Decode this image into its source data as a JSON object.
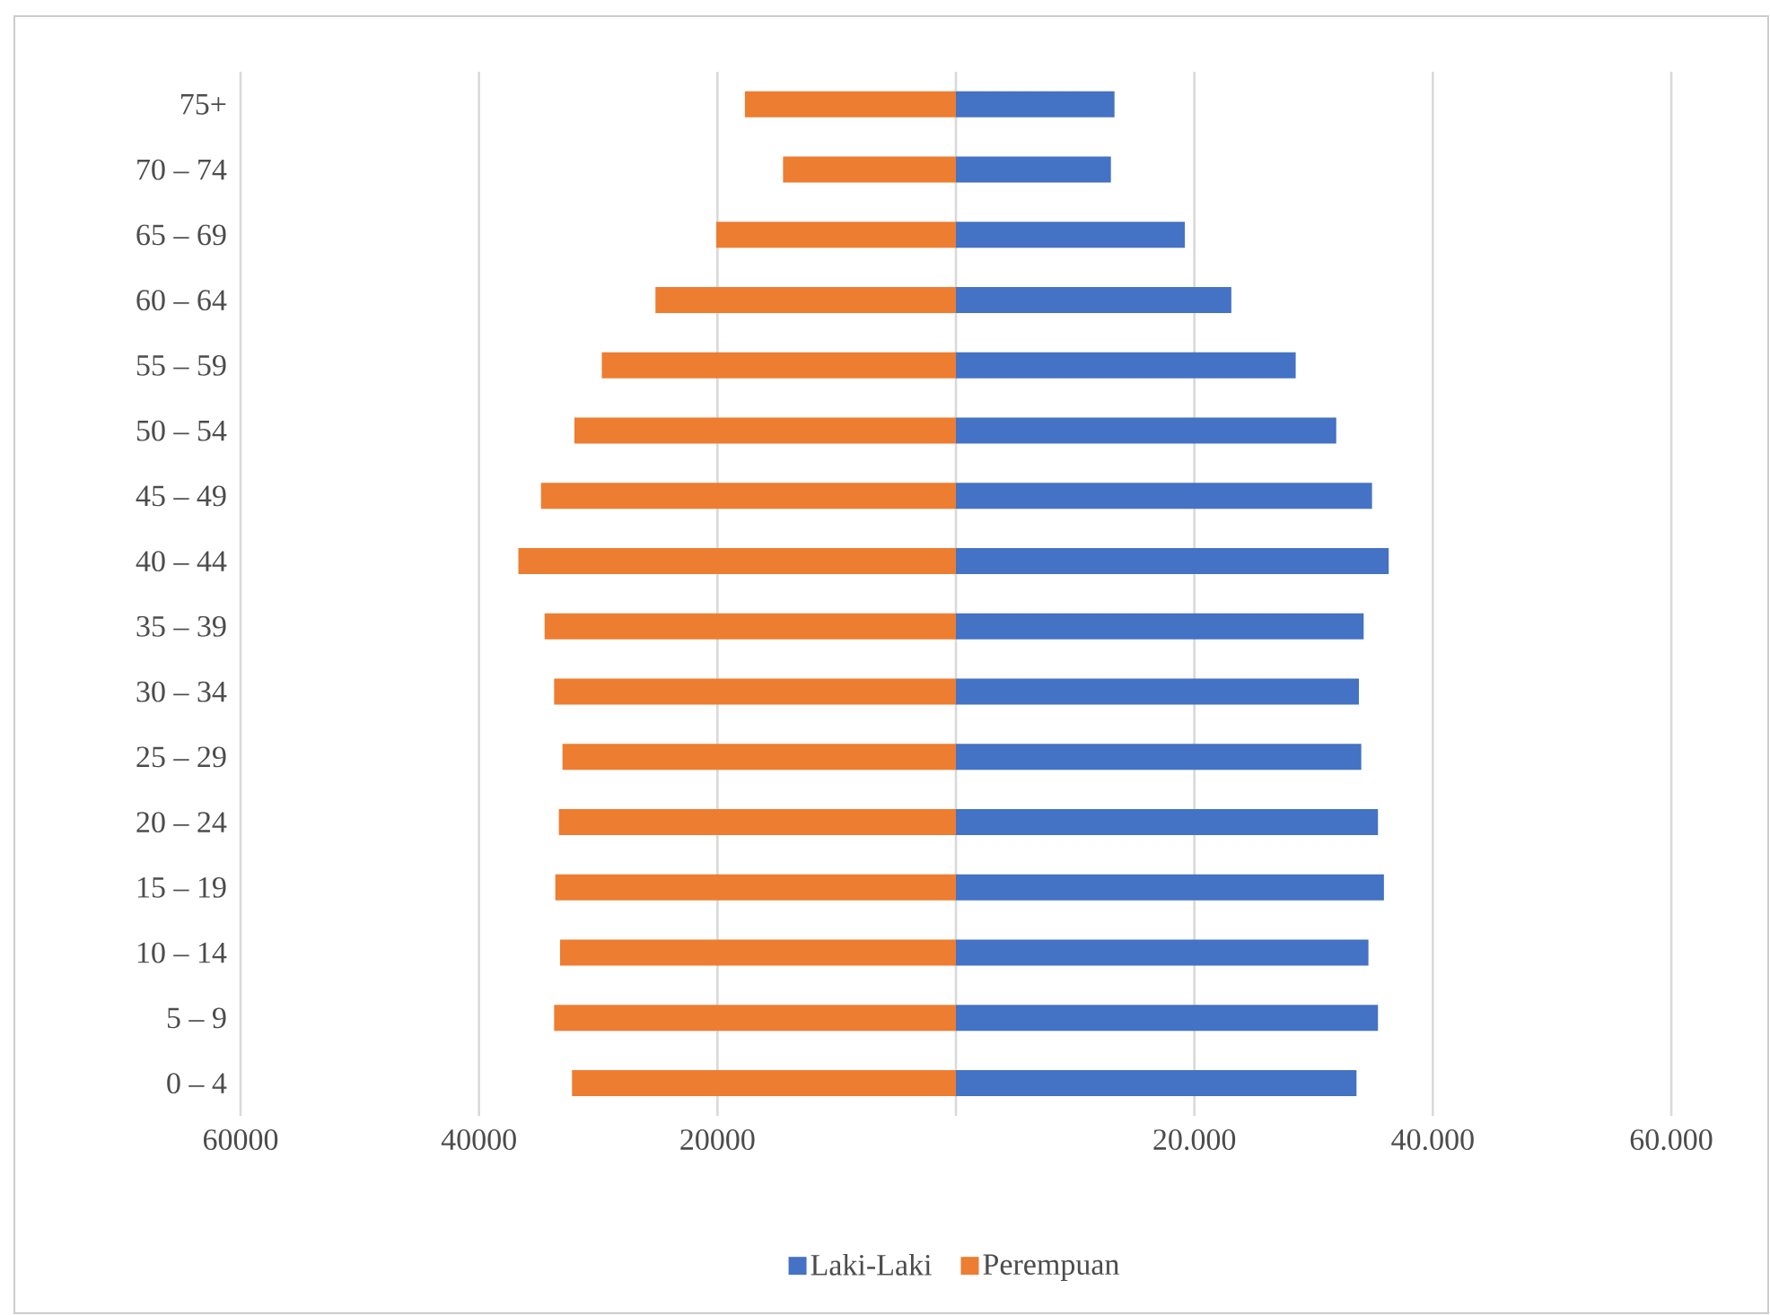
{
  "chart_data": {
    "type": "bar",
    "orientation": "horizontal",
    "categories": [
      "75+",
      "70 – 74",
      "65 – 69",
      "60 – 64",
      "55 – 59",
      "50 – 54",
      "45 – 49",
      "40 – 44",
      "35 – 39",
      "30 – 34",
      "25 – 29",
      "20 – 24",
      "15 – 19",
      "10 – 14",
      "5 – 9",
      "0 – 4"
    ],
    "series": [
      {
        "name": "Laki-Laki",
        "color": "#4472c4",
        "values": [
          13300,
          13000,
          19200,
          23100,
          28500,
          31900,
          34900,
          36300,
          34200,
          33800,
          34000,
          35400,
          35900,
          34600,
          35400,
          33600
        ]
      },
      {
        "name": "Perempuan",
        "color": "#ed7d31",
        "values": [
          -17700,
          -14500,
          -20100,
          -25200,
          -29700,
          -32000,
          -34800,
          -36700,
          -34500,
          -33700,
          -33000,
          -33300,
          -33600,
          -33200,
          -33700,
          -32200
        ]
      }
    ],
    "xlim": [
      -60000,
      60000
    ],
    "xticks": [
      {
        "value": -60000,
        "label": "60000"
      },
      {
        "value": -40000,
        "label": "40000"
      },
      {
        "value": -20000,
        "label": "20000"
      },
      {
        "value": 0,
        "label": null
      },
      {
        "value": 20000,
        "label": "20.000"
      },
      {
        "value": 40000,
        "label": "40.000"
      },
      {
        "value": 60000,
        "label": "60.000"
      }
    ],
    "stacked": true,
    "grid": "x",
    "legend": "bottom"
  }
}
